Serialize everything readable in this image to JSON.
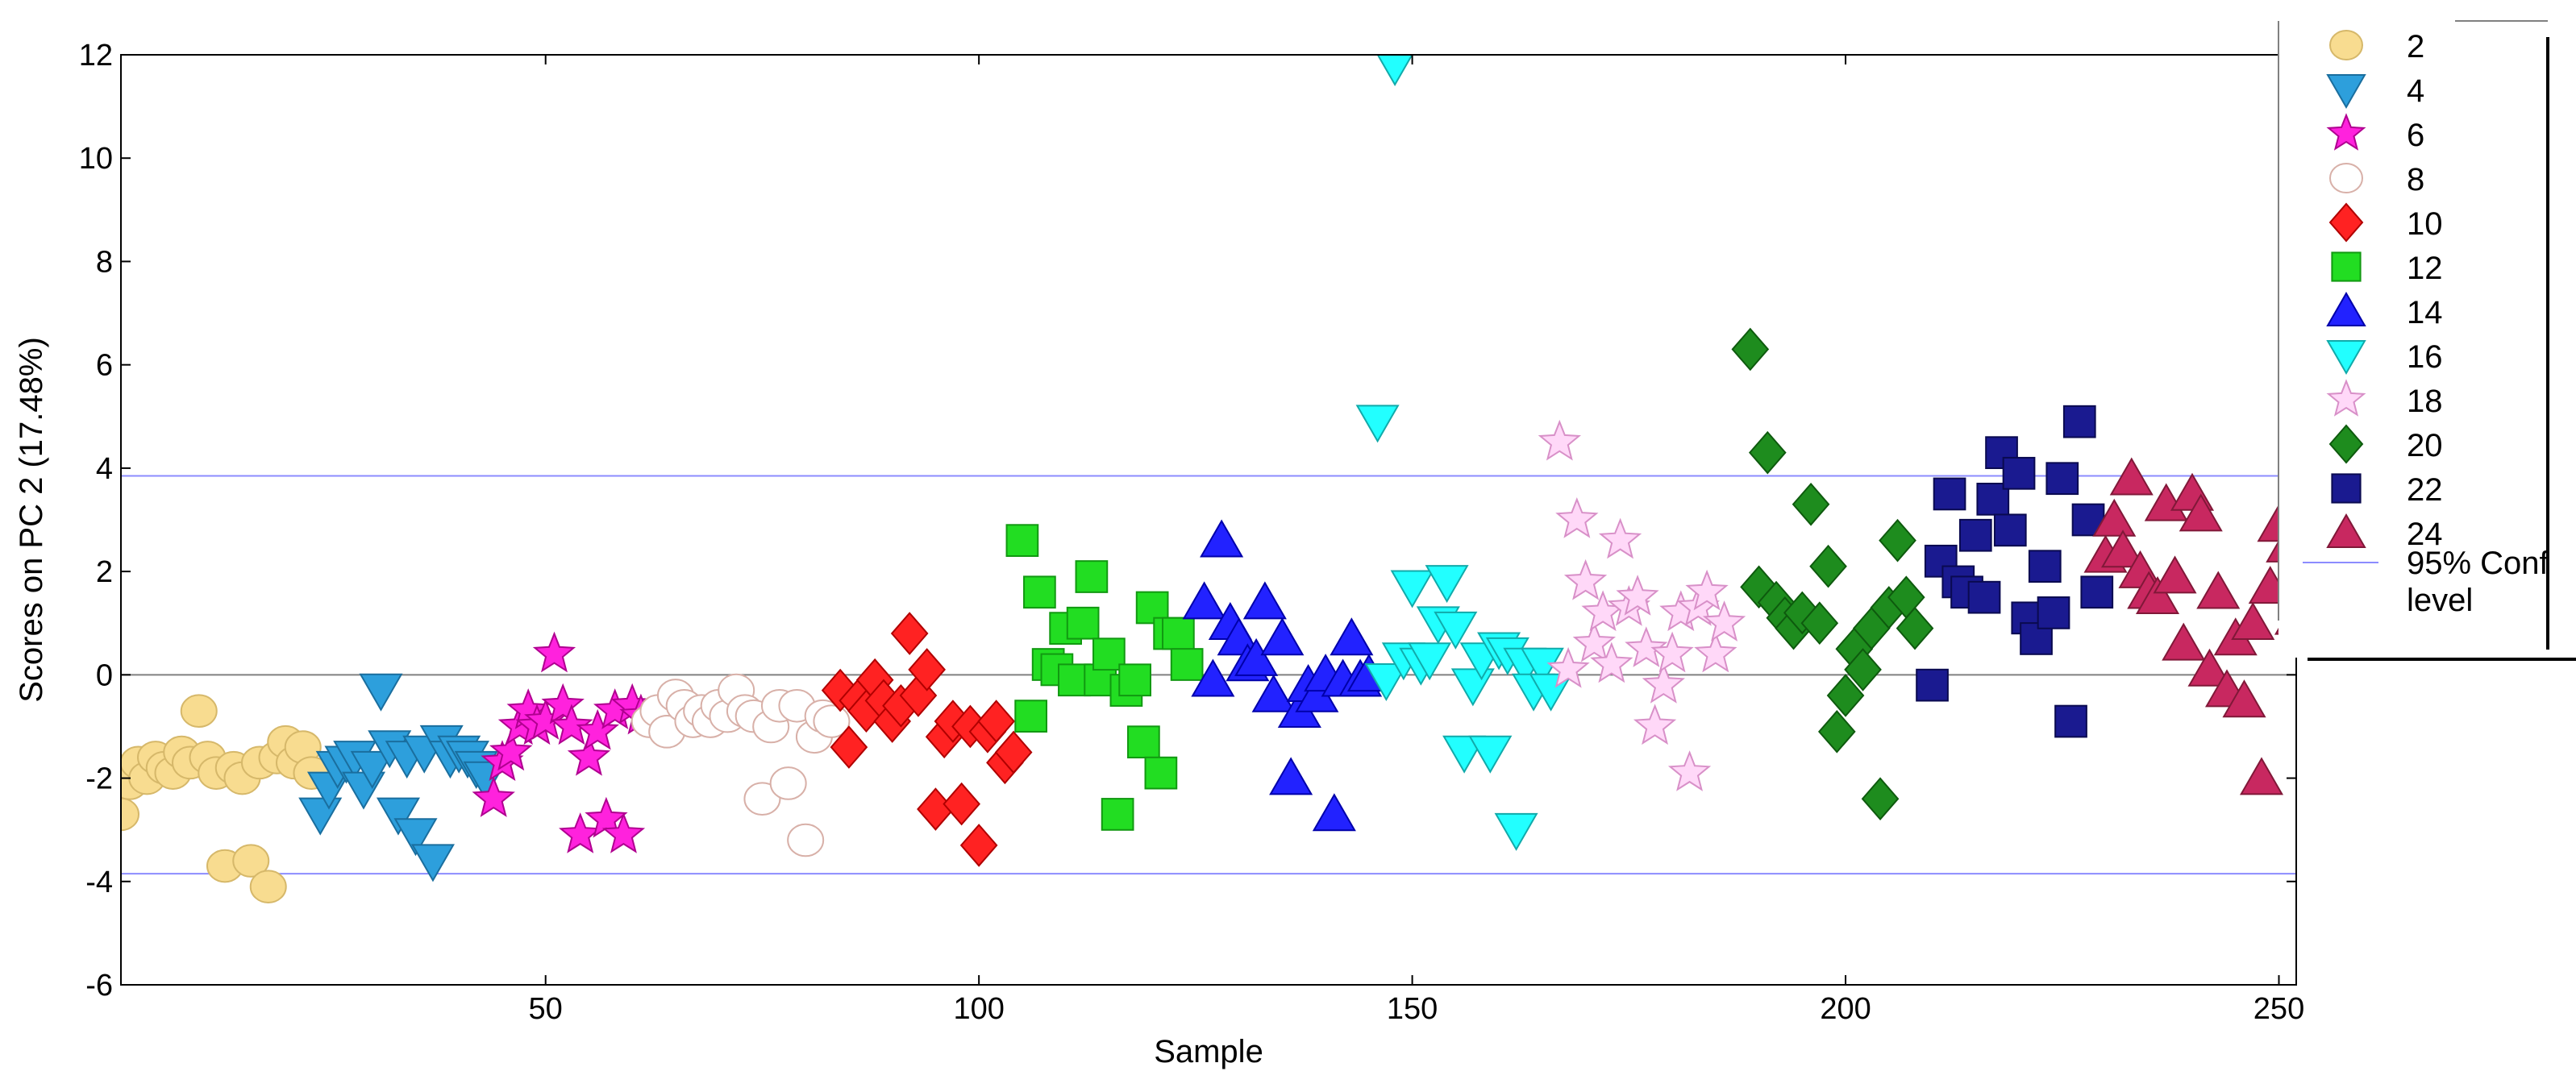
{
  "chart_data": {
    "type": "scatter",
    "title": "",
    "xlabel": "Sample",
    "ylabel": "Scores on PC 2 (17.48%)",
    "xlim": [
      1,
      252
    ],
    "ylim": [
      -6,
      12
    ],
    "xticks": [
      50,
      100,
      150,
      200,
      250
    ],
    "yticks": [
      -6,
      -4,
      -2,
      0,
      2,
      4,
      6,
      8,
      10,
      12
    ],
    "xtick_labels": [
      "50",
      "100",
      "150",
      "200",
      "250"
    ],
    "ytick_labels": [
      "-6",
      "-4",
      "-2",
      "0",
      "2",
      "4",
      "6",
      "8",
      "10",
      "12"
    ],
    "zero_line": 0,
    "confidence_limits": [
      3.85,
      -3.85
    ],
    "confidence_label": "95% Conf level",
    "confidence_label_lines": [
      "95% Conf",
      "level"
    ],
    "confidence_color": "#8c8cff",
    "legend_position": "right",
    "series": [
      {
        "name": "2",
        "marker": "circle",
        "fill": "#f8dc90",
        "stroke": "#d6b86a",
        "x": [
          1,
          2,
          3,
          4,
          5,
          6,
          7,
          8,
          9,
          10,
          11,
          12,
          13,
          14,
          15,
          16,
          17,
          18,
          19,
          20,
          21,
          22,
          23
        ],
        "y": [
          -2.7,
          -2.1,
          -1.7,
          -2.0,
          -1.6,
          -1.8,
          -1.9,
          -1.5,
          -1.7,
          -0.7,
          -1.6,
          -1.9,
          -3.7,
          -1.8,
          -2.0,
          -3.6,
          -1.7,
          -4.1,
          -1.6,
          -1.3,
          -1.7,
          -1.4,
          -1.9
        ]
      },
      {
        "name": "4",
        "marker": "triangle-down",
        "fill": "#2d9fdc",
        "stroke": "#1a6e9e",
        "x": [
          24,
          25,
          26,
          27,
          28,
          29,
          30,
          31,
          32,
          33,
          34,
          35,
          36,
          37,
          38,
          39,
          40,
          41,
          42,
          43
        ],
        "y": [
          -2.7,
          -2.2,
          -1.8,
          -1.7,
          -1.6,
          -2.2,
          -1.8,
          -0.3,
          -1.4,
          -2.7,
          -1.6,
          -3.1,
          -1.5,
          -3.6,
          -1.3,
          -1.6,
          -1.5,
          -1.6,
          -1.8,
          -2.0
        ]
      },
      {
        "name": "6",
        "marker": "star",
        "fill": "#ff22dd",
        "stroke": "#b00090",
        "x": [
          44,
          45,
          46,
          47,
          48,
          49,
          50,
          51,
          52,
          53,
          54,
          55,
          56,
          57,
          58,
          59,
          60,
          61
        ],
        "y": [
          -2.4,
          -1.7,
          -1.5,
          -1.0,
          -0.7,
          -1.0,
          -0.9,
          0.4,
          -0.6,
          -1.0,
          -3.1,
          -1.6,
          -1.1,
          -2.8,
          -0.7,
          -3.1,
          -0.6,
          -0.8
        ]
      },
      {
        "name": "8",
        "marker": "circle",
        "fill": "#ffffff",
        "stroke": "#d8b0a8",
        "x": [
          62,
          63,
          64,
          65,
          66,
          67,
          68,
          69,
          70,
          71,
          72,
          73,
          74,
          75,
          76,
          77,
          78,
          79,
          80,
          81,
          82,
          83
        ],
        "y": [
          -0.9,
          -0.7,
          -1.1,
          -0.4,
          -0.6,
          -0.9,
          -0.7,
          -0.9,
          -0.6,
          -0.8,
          -0.3,
          -0.7,
          -0.8,
          -2.4,
          -1.0,
          -0.6,
          -2.1,
          -0.6,
          -3.2,
          -1.2,
          -0.8,
          -0.9
        ]
      },
      {
        "name": "10",
        "marker": "diamond",
        "fill": "#ff2222",
        "stroke": "#b00000",
        "x": [
          84,
          85,
          86,
          87,
          88,
          89,
          90,
          91,
          92,
          93,
          94,
          95,
          96,
          97,
          98,
          99,
          100,
          101,
          102,
          103,
          104
        ],
        "y": [
          -0.3,
          -1.4,
          -0.5,
          -0.7,
          -0.1,
          -0.5,
          -0.9,
          -0.6,
          0.8,
          -0.4,
          0.1,
          -2.6,
          -1.2,
          -0.9,
          -2.5,
          -1.0,
          -3.3,
          -1.1,
          -0.9,
          -1.7,
          -1.5
        ]
      },
      {
        "name": "12",
        "marker": "square",
        "fill": "#22dd22",
        "stroke": "#119911",
        "x": [
          105,
          106,
          107,
          108,
          109,
          110,
          111,
          112,
          113,
          114,
          115,
          116,
          117,
          118,
          119,
          120,
          121,
          122,
          123,
          124
        ],
        "y": [
          2.6,
          -0.8,
          1.6,
          0.2,
          0.1,
          0.9,
          -0.1,
          1.0,
          1.9,
          -0.1,
          0.4,
          -2.7,
          -0.3,
          -0.1,
          -1.3,
          1.3,
          -1.9,
          0.8,
          0.8,
          0.2
        ]
      },
      {
        "name": "14",
        "marker": "triangle-up",
        "fill": "#2222ff",
        "stroke": "#0000aa",
        "x": [
          126,
          127,
          128,
          129,
          130,
          131,
          132,
          133,
          134,
          135,
          136,
          137,
          138,
          139,
          140,
          141,
          142,
          143,
          144,
          145
        ],
        "y": [
          1.4,
          -0.1,
          2.6,
          1.0,
          0.7,
          0.2,
          0.3,
          1.4,
          -0.4,
          0.7,
          -2.0,
          -0.7,
          -0.2,
          -0.4,
          0.0,
          -2.7,
          -0.1,
          0.7,
          -0.1,
          0.0
        ]
      },
      {
        "name": "16",
        "marker": "triangle-down",
        "fill": "#22ffff",
        "stroke": "#11aaaa",
        "x": [
          146,
          147,
          148,
          149,
          150,
          151,
          152,
          153,
          154,
          155,
          156,
          157,
          158,
          159,
          160,
          161,
          162,
          163,
          164,
          165,
          166
        ],
        "y": [
          4.9,
          -0.1,
          11.8,
          0.3,
          1.7,
          0.2,
          0.3,
          1.0,
          1.8,
          0.9,
          -1.5,
          -0.2,
          0.3,
          -1.5,
          0.5,
          0.4,
          -3.0,
          0.2,
          -0.3,
          0.2,
          -0.3
        ]
      },
      {
        "name": "18",
        "marker": "star",
        "fill": "#ffd8f8",
        "stroke": "#d890c8",
        "x": [
          167,
          168,
          169,
          170,
          171,
          172,
          173,
          174,
          175,
          176,
          177,
          178,
          179,
          180,
          181,
          182,
          183,
          184,
          185,
          186
        ],
        "y": [
          4.5,
          0.1,
          3.0,
          1.8,
          0.6,
          1.2,
          0.2,
          2.6,
          1.3,
          1.5,
          0.5,
          -1.0,
          -0.2,
          0.4,
          1.2,
          -1.9,
          1.3,
          1.6,
          0.4,
          1.0
        ]
      },
      {
        "name": "20",
        "marker": "diamond",
        "fill": "#1e8c1e",
        "stroke": "#0e5a0e",
        "x": [
          189,
          190,
          191,
          192,
          193,
          194,
          195,
          196,
          197,
          198,
          199,
          200,
          201,
          202,
          203,
          204,
          205,
          206,
          207,
          208
        ],
        "y": [
          6.3,
          1.7,
          4.3,
          1.4,
          1.1,
          0.9,
          1.2,
          3.3,
          1.0,
          2.1,
          -1.1,
          -0.4,
          0.5,
          0.1,
          0.9,
          -2.4,
          1.3,
          2.6,
          1.5,
          0.9
        ]
      },
      {
        "name": "22",
        "marker": "square",
        "fill": "#1a1a90",
        "stroke": "#0a0a50",
        "x": [
          210,
          211,
          212,
          213,
          214,
          215,
          216,
          217,
          218,
          219,
          220,
          221,
          222,
          223,
          224,
          225,
          226,
          227,
          228,
          229
        ],
        "y": [
          -0.2,
          2.2,
          3.5,
          1.8,
          1.6,
          2.7,
          1.5,
          3.4,
          4.3,
          2.8,
          3.9,
          1.1,
          0.7,
          2.1,
          1.2,
          3.8,
          -0.9,
          4.9,
          3.0,
          1.6
        ]
      },
      {
        "name": "24",
        "marker": "triangle-up",
        "fill": "#c82860",
        "stroke": "#801838",
        "x": [
          230,
          231,
          232,
          233,
          234,
          235,
          236,
          237,
          238,
          239,
          240,
          241,
          242,
          243,
          244,
          245,
          246,
          247,
          248,
          249,
          250,
          251,
          252
        ],
        "y": [
          2.3,
          3.0,
          2.4,
          3.8,
          2.0,
          1.6,
          1.5,
          3.3,
          1.9,
          0.6,
          3.5,
          3.1,
          0.1,
          1.6,
          -0.3,
          0.7,
          -0.5,
          1.0,
          -2.0,
          1.7,
          2.9,
          2.5,
          1.1
        ]
      }
    ]
  }
}
